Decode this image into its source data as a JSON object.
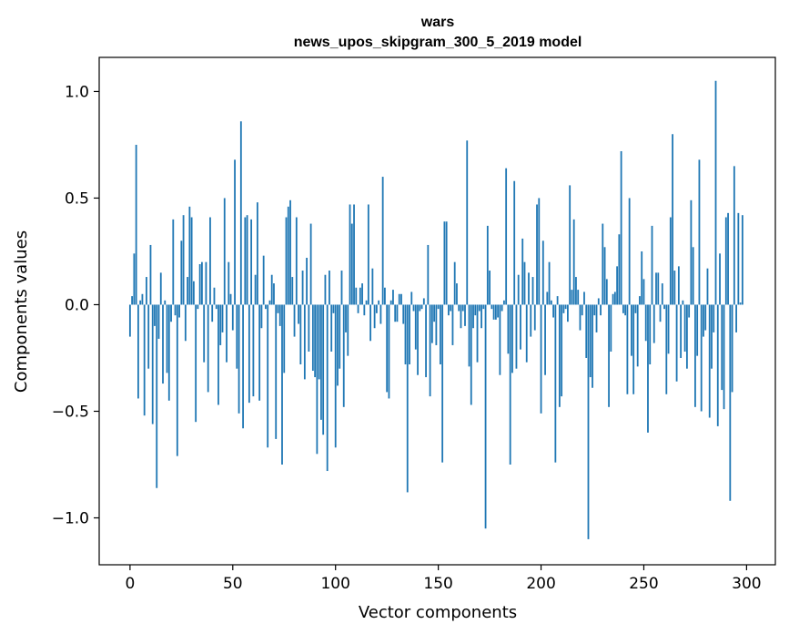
{
  "chart_data": {
    "type": "bar",
    "title": "wars",
    "subtitle": "news_upos_skipgram_300_5_2019 model",
    "xlabel": "Vector components",
    "ylabel": "Components values",
    "xlim": [
      -15,
      314
    ],
    "ylim": [
      -1.22,
      1.16
    ],
    "xticks": [
      0,
      50,
      100,
      150,
      200,
      250,
      300
    ],
    "xtick_labels": [
      "0",
      "50",
      "100",
      "150",
      "200",
      "250",
      "300"
    ],
    "yticks": [
      -1.0,
      -0.5,
      0.0,
      0.5,
      1.0
    ],
    "ytick_labels": [
      "−1.0",
      "−0.5",
      "0.0",
      "0.5",
      "1.0"
    ],
    "grid": false,
    "legend": "none",
    "bar_color": "#1f77b4",
    "values": [
      -0.15,
      0.04,
      0.24,
      0.75,
      -0.44,
      0.02,
      0.05,
      -0.52,
      0.13,
      -0.3,
      0.28,
      -0.56,
      -0.1,
      -0.86,
      -0.16,
      0.15,
      -0.37,
      0.02,
      -0.32,
      -0.45,
      -0.08,
      0.4,
      -0.05,
      -0.71,
      -0.06,
      0.3,
      0.42,
      -0.17,
      0.13,
      0.46,
      0.41,
      0.11,
      -0.55,
      -0.02,
      0.19,
      0.2,
      -0.27,
      0.2,
      -0.41,
      0.41,
      -0.08,
      0.08,
      -0.02,
      -0.47,
      -0.19,
      -0.13,
      0.5,
      -0.27,
      0.2,
      0.05,
      -0.12,
      0.68,
      -0.3,
      -0.51,
      0.86,
      -0.58,
      0.41,
      0.42,
      -0.46,
      0.4,
      -0.43,
      0.14,
      0.48,
      -0.45,
      -0.11,
      0.23,
      -0.02,
      -0.67,
      0.02,
      0.14,
      0.1,
      -0.63,
      -0.04,
      -0.1,
      -0.75,
      -0.32,
      0.41,
      0.46,
      0.49,
      0.13,
      -0.15,
      0.41,
      -0.09,
      -0.28,
      0.16,
      -0.35,
      0.22,
      -0.22,
      0.38,
      -0.31,
      -0.34,
      -0.7,
      -0.35,
      -0.54,
      -0.61,
      0.14,
      -0.78,
      0.16,
      -0.22,
      -0.04,
      -0.67,
      -0.38,
      -0.3,
      0.16,
      -0.48,
      -0.13,
      -0.24,
      0.47,
      0.38,
      0.47,
      0.08,
      -0.04,
      0.08,
      0.1,
      -0.05,
      0.02,
      0.47,
      -0.17,
      0.17,
      -0.11,
      -0.04,
      0.02,
      -0.09,
      0.6,
      0.08,
      -0.41,
      -0.44,
      0.02,
      0.07,
      -0.08,
      -0.08,
      0.05,
      0.05,
      -0.09,
      -0.28,
      -0.88,
      -0.28,
      0.06,
      -0.03,
      -0.21,
      -0.33,
      -0.03,
      -0.02,
      0.03,
      -0.34,
      0.28,
      -0.43,
      -0.18,
      -0.08,
      -0.19,
      -0.02,
      -0.28,
      -0.74,
      0.39,
      0.39,
      -0.05,
      -0.03,
      -0.19,
      0.2,
      0.1,
      -0.03,
      -0.11,
      -0.03,
      -0.1,
      0.77,
      -0.29,
      -0.47,
      -0.11,
      -0.05,
      -0.27,
      -0.03,
      -0.11,
      -0.02,
      -1.05,
      0.37,
      0.16,
      -0.02,
      -0.07,
      -0.07,
      -0.06,
      -0.33,
      -0.03,
      0.02,
      0.64,
      -0.23,
      -0.75,
      -0.32,
      0.58,
      -0.3,
      0.14,
      -0.21,
      0.31,
      0.2,
      -0.27,
      0.15,
      -0.15,
      0.13,
      -0.12,
      0.47,
      0.5,
      -0.51,
      0.3,
      -0.33,
      0.06,
      0.2,
      0.02,
      -0.06,
      -0.74,
      0.04,
      -0.48,
      -0.43,
      -0.04,
      -0.02,
      -0.08,
      0.56,
      0.07,
      0.4,
      0.13,
      0.07,
      -0.12,
      -0.05,
      0.06,
      -0.25,
      -1.1,
      -0.34,
      -0.39,
      -0.05,
      -0.13,
      0.03,
      -0.05,
      0.38,
      0.27,
      0.12,
      -0.48,
      -0.22,
      0.05,
      0.06,
      0.18,
      0.33,
      0.72,
      -0.04,
      -0.05,
      -0.42,
      0.5,
      -0.24,
      -0.42,
      -0.04,
      -0.29,
      0.04,
      0.25,
      0.12,
      -0.17,
      -0.6,
      -0.28,
      0.37,
      -0.18,
      0.15,
      0.15,
      -0.08,
      0.1,
      -0.02,
      -0.42,
      -0.23,
      0.41,
      0.8,
      0.16,
      -0.36,
      0.18,
      -0.25,
      0.02,
      -0.22,
      -0.3,
      -0.06,
      0.49,
      0.27,
      -0.48,
      -0.24,
      0.68,
      -0.5,
      -0.15,
      -0.12,
      0.17,
      -0.53,
      -0.3,
      -0.13,
      1.05,
      -0.57,
      0.24,
      -0.4,
      -0.49,
      0.41,
      0.43,
      -0.92,
      -0.41,
      0.65,
      -0.13,
      0.43,
      0.01,
      0.42
    ]
  }
}
